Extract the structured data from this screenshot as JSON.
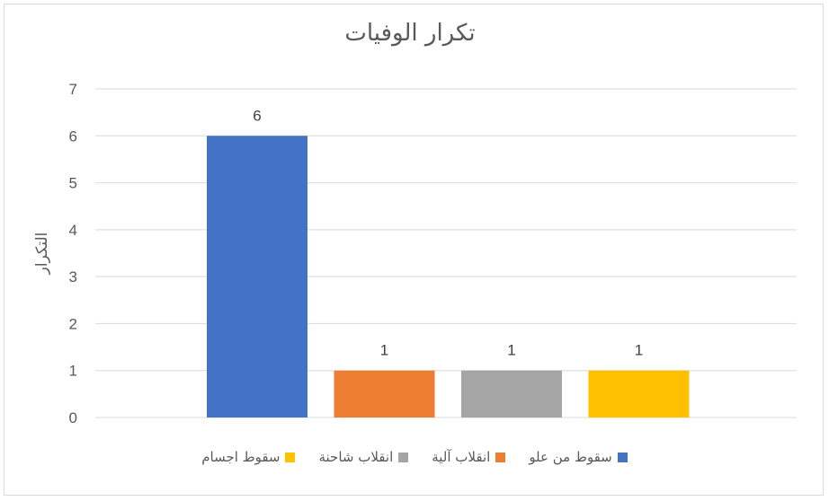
{
  "chart_data": {
    "type": "bar",
    "title": "تكرار الوفيات",
    "ylabel": "التكرار",
    "xlabel": "",
    "ylim": [
      0,
      7
    ],
    "yticks": [
      0,
      1,
      2,
      3,
      4,
      5,
      6,
      7
    ],
    "grid": true,
    "legend_position": "bottom",
    "series": [
      {
        "name": "سقوط من علو",
        "values": [
          6
        ],
        "color": "#4472C4"
      },
      {
        "name": "انقلاب آلية",
        "values": [
          1
        ],
        "color": "#ED7D31"
      },
      {
        "name": "انقلاب شاحنة",
        "values": [
          1
        ],
        "color": "#A5A5A5"
      },
      {
        "name": "سقوط اجسام",
        "values": [
          1
        ],
        "color": "#FFC000"
      }
    ]
  }
}
